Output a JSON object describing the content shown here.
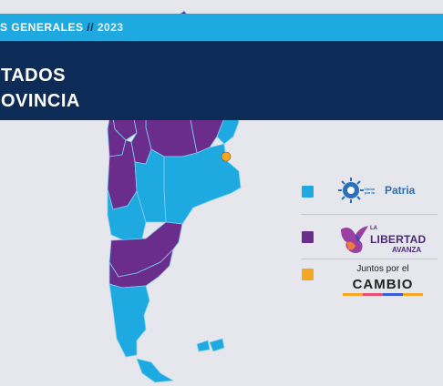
{
  "header": {
    "election_label": "S GENERALES",
    "separator": "//",
    "year": "2023"
  },
  "title": {
    "line1": "TADOS",
    "line2": "OVINCIA"
  },
  "legend": [
    {
      "color": "#1fa9e1",
      "logo": "union-por-la-patria-logo",
      "small_text": [
        "Unión",
        "por la"
      ],
      "main_text": "Patria"
    },
    {
      "color": "#6b2d8c",
      "logo": "la-libertad-avanza-logo",
      "prefix": "LA",
      "main_text": "LIBERTAD",
      "sub_text": "AVANZA"
    },
    {
      "color": "#f5a623",
      "logo": "juntos-por-el-cambio-logo",
      "top_text": "Juntos por el",
      "main_text": "CAMBIO"
    }
  ],
  "map": {
    "colors": {
      "union_por_la_patria": "#1fa9e1",
      "la_libertad_avanza": "#6b2d8c",
      "juntos_por_el_cambio": "#f5a623",
      "border": "#7fd0f0"
    }
  }
}
